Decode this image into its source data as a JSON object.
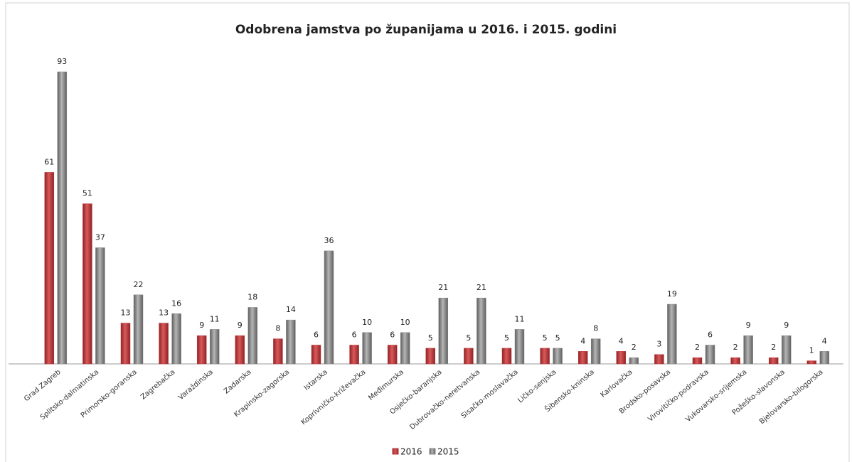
{
  "chart_data": {
    "type": "bar",
    "title": "Odobrena jamstva po županijama u 2016. i 2015. godini",
    "categories": [
      "Grad Zagreb",
      "Splitsko-dalmatinska",
      "Primorsko-goranska",
      "Zagrebačka",
      "Varaždinska",
      "Zadarska",
      "Krapinsko-zagorska",
      "Istarska",
      "Koprivničko-križevačka",
      "Međimurska",
      "Osječko-baranjska",
      "Dubrovačko-neretvanska",
      "Sisačko-moslavačka",
      "Ličko-senjska",
      "Šibensko-kninska",
      "Karlovačka",
      "Brodsko-posavska",
      "Virovitičko-podravska",
      "Vukovarsko-srijemska",
      "Požeško-slavonska",
      "Bjelovarsko-bilogorska"
    ],
    "series": [
      {
        "name": "2016",
        "color": "#c0393b",
        "values": [
          61,
          51,
          13,
          13,
          9,
          9,
          8,
          6,
          6,
          6,
          5,
          5,
          5,
          5,
          4,
          4,
          3,
          2,
          2,
          2,
          1
        ]
      },
      {
        "name": "2015",
        "color": "#8a8a8a",
        "values": [
          93,
          37,
          22,
          16,
          11,
          18,
          14,
          36,
          10,
          10,
          21,
          21,
          11,
          5,
          8,
          2,
          19,
          6,
          9,
          9,
          4
        ]
      }
    ],
    "legend": "bottom"
  }
}
